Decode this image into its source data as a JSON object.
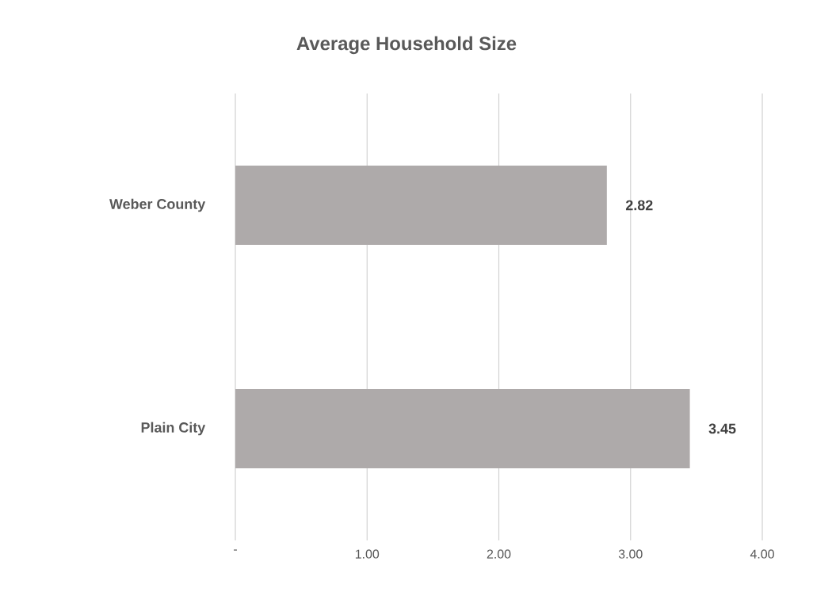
{
  "chart_data": {
    "type": "bar",
    "orientation": "horizontal",
    "title": "Average Household Size",
    "categories": [
      "Weber County",
      "Plain City"
    ],
    "values": [
      2.82,
      3.45
    ],
    "color": "#aeaaaa",
    "xlim": [
      0,
      4
    ],
    "xticks": [
      {
        "value": 0,
        "label": "-"
      },
      {
        "value": 1,
        "label": "1.00"
      },
      {
        "value": 2,
        "label": "2.00"
      },
      {
        "value": 3,
        "label": "3.00"
      },
      {
        "value": 4,
        "label": "4.00"
      }
    ],
    "grid": "x",
    "data_labels": true
  }
}
